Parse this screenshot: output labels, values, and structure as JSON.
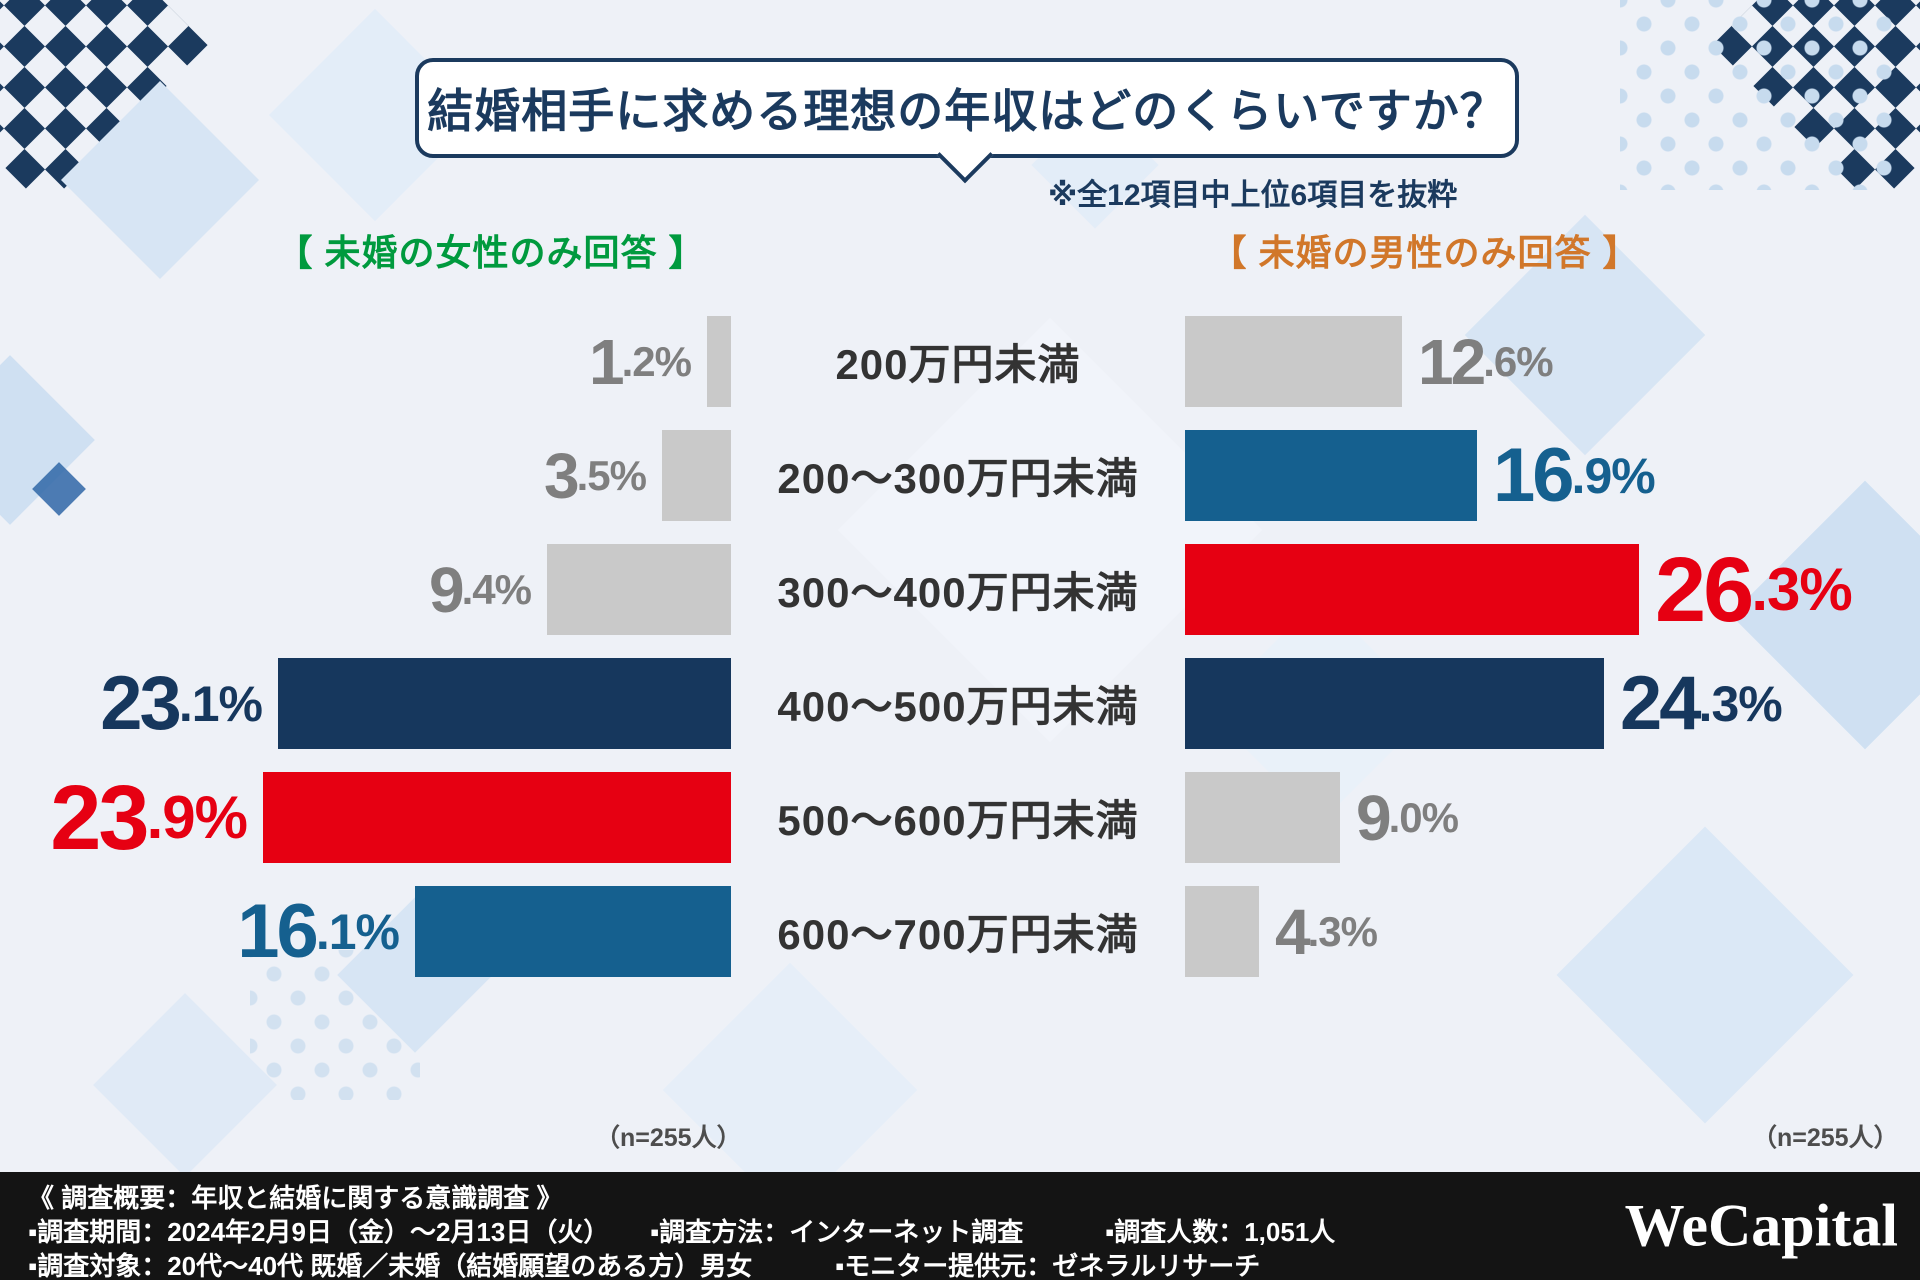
{
  "title": "結婚相手に求める理想の年収はどのくらいですか？",
  "note": "※全12項目中上位6項目を抜粋",
  "left_header": "【 未婚の女性のみ回答 】",
  "right_header": "【 未婚の男性のみ回答 】",
  "sample_left": "（n=255人）",
  "sample_right": "（n=255人）",
  "colors": {
    "navy": "#16375d",
    "red": "#e60012",
    "blue": "#15608f",
    "gray_bar": "#c9c9c9",
    "gray_text": "#7f7f7f",
    "green_header": "#009a3e",
    "orange_header": "#d1772a",
    "title_navy": "#1b3a5e",
    "footer_bg": "#141414"
  },
  "chart_data": {
    "type": "bar",
    "orientation": "horizontal-butterfly",
    "title": "結婚相手に求める理想の年収はどのくらいですか？",
    "subtitle": "※全12項目中上位6項目を抜粋",
    "categories": [
      "200万円未満",
      "200〜300万円未満",
      "300〜400万円未満",
      "400〜500万円未満",
      "500〜600万円未満",
      "600〜700万円未満"
    ],
    "value_suffix": "%",
    "xlim": [
      0,
      30
    ],
    "series": [
      {
        "name": "未婚の女性のみ回答",
        "side": "left",
        "n": 255,
        "values": [
          1.2,
          3.5,
          9.4,
          23.1,
          23.9,
          16.1
        ],
        "styles": [
          "gray",
          "gray",
          "gray",
          "navy",
          "red",
          "blue"
        ]
      },
      {
        "name": "未婚の男性のみ回答",
        "side": "right",
        "n": 255,
        "values": [
          12.6,
          16.9,
          26.3,
          24.3,
          9.0,
          4.3
        ],
        "styles": [
          "gray",
          "blue",
          "red",
          "navy",
          "gray",
          "gray"
        ]
      }
    ],
    "legend_position": "none",
    "grid": false
  },
  "footer": {
    "heading": "《 調査概要：年収と結婚に関する意識調査 》",
    "line2": [
      "▪調査期間：2024年2月9日（金）〜2月13日（火）",
      "▪調査方法：インターネット調査",
      "▪調査人数：1,051人"
    ],
    "line3": [
      "▪調査対象：20代〜40代 既婚／未婚（結婚願望のある方）男女",
      "▪モニター提供元：ゼネラルリサーチ"
    ],
    "logo": "WeCapital"
  }
}
